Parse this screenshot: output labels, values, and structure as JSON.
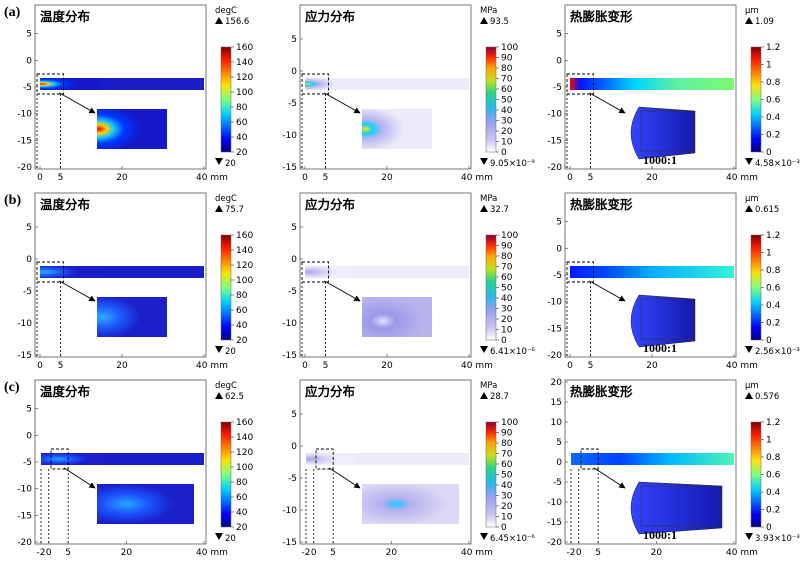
{
  "figure": {
    "rows": [
      {
        "label": "(a)",
        "panels": [
          {
            "kind": "temperature",
            "title": "温度分布",
            "unit": "degC",
            "max": "156.6",
            "min": "20",
            "cbar_ticks": [
              "160",
              "140",
              "120",
              "100",
              "80",
              "60",
              "40",
              "20"
            ],
            "x_ticks": [
              "0",
              "5",
              "20",
              "40 mm"
            ],
            "y_ticks": [
              "5",
              "0",
              "-5",
              "-10",
              "-15",
              "-20"
            ],
            "magnification": ""
          },
          {
            "kind": "stress",
            "title": "应力分布",
            "unit": "MPa",
            "max": "93.5",
            "min": "9.05×10⁻⁹",
            "cbar_ticks": [
              "100",
              "90",
              "80",
              "70",
              "60",
              "50",
              "40",
              "30",
              "20",
              "10",
              "0"
            ],
            "x_ticks": [
              "0",
              "5",
              "20",
              "40 mm"
            ],
            "y_ticks": [
              "5",
              "0",
              "-5",
              "-10",
              "-15"
            ],
            "magnification": ""
          },
          {
            "kind": "deformation",
            "title": "热膨胀变形",
            "unit": "μm",
            "max": "1.09",
            "min": "4.58×10⁻³",
            "cbar_ticks": [
              "1.2",
              "1",
              "0.8",
              "0.6",
              "0.4",
              "0.2",
              "0"
            ],
            "x_ticks": [
              "0",
              "5",
              "20",
              "40 mm"
            ],
            "y_ticks": [
              "5",
              "0",
              "-5",
              "-10",
              "-15",
              "-20"
            ],
            "magnification": "1000:1"
          }
        ]
      },
      {
        "label": "(b)",
        "panels": [
          {
            "kind": "temperature",
            "title": "温度分布",
            "unit": "degC",
            "max": "75.7",
            "min": "20",
            "cbar_ticks": [
              "160",
              "140",
              "120",
              "100",
              "80",
              "60",
              "40",
              "20"
            ],
            "x_ticks": [
              "0",
              "5",
              "20",
              "40 mm"
            ],
            "y_ticks": [
              "5",
              "0",
              "-5",
              "-10",
              "-15"
            ],
            "magnification": ""
          },
          {
            "kind": "stress",
            "title": "应力分布",
            "unit": "MPa",
            "max": "32.7",
            "min": "6.41×10⁻⁶",
            "cbar_ticks": [
              "100",
              "90",
              "80",
              "70",
              "60",
              "50",
              "40",
              "30",
              "20",
              "10",
              "0"
            ],
            "x_ticks": [
              "0",
              "5",
              "20",
              "40 mm"
            ],
            "y_ticks": [
              "5",
              "0",
              "-5",
              "-10",
              "-15"
            ],
            "magnification": ""
          },
          {
            "kind": "deformation",
            "title": "热膨胀变形",
            "unit": "μm",
            "max": "0.615",
            "min": "2.56×10⁻³",
            "cbar_ticks": [
              "1.2",
              "1",
              "0.8",
              "0.6",
              "0.4",
              "0.2",
              "0"
            ],
            "x_ticks": [
              "0",
              "5",
              "20",
              "40 mm"
            ],
            "y_ticks": [
              "5",
              "0",
              "-5",
              "-10",
              "-15",
              "-20"
            ],
            "magnification": "1000:1"
          }
        ]
      },
      {
        "label": "(c)",
        "panels": [
          {
            "kind": "temperature",
            "title": "温度分布",
            "unit": "degC",
            "max": "62.5",
            "min": "20",
            "cbar_ticks": [
              "160",
              "140",
              "120",
              "100",
              "80",
              "60",
              "40",
              "20"
            ],
            "x_ticks": [
              "-2",
              "0",
              "5",
              "20",
              "40 mm"
            ],
            "y_ticks": [
              "5",
              "0",
              "-5",
              "-10",
              "-15",
              "-20"
            ],
            "magnification": ""
          },
          {
            "kind": "stress",
            "title": "应力分布",
            "unit": "MPa",
            "max": "28.7",
            "min": "6.45×10⁻⁶",
            "cbar_ticks": [
              "100",
              "90",
              "80",
              "70",
              "60",
              "50",
              "40",
              "30",
              "20",
              "10",
              "0"
            ],
            "x_ticks": [
              "-2",
              "0",
              "5",
              "20",
              "40 mm"
            ],
            "y_ticks": [
              "5",
              "0",
              "-5",
              "-10",
              "-15"
            ],
            "magnification": ""
          },
          {
            "kind": "deformation",
            "title": "热膨胀变形",
            "unit": "μm",
            "max": "0.576",
            "min": "3.93×10⁻³",
            "cbar_ticks": [
              "1.2",
              "1",
              "0.8",
              "0.6",
              "0.4",
              "0.2",
              "0"
            ],
            "x_ticks": [
              "-2",
              "0",
              "5",
              "20",
              "40 mm"
            ],
            "y_ticks": [
              "20",
              "15",
              "10",
              "5",
              "0",
              "-5",
              "-10",
              "-15",
              "-20"
            ],
            "magnification": "1000:1"
          }
        ]
      }
    ]
  }
}
